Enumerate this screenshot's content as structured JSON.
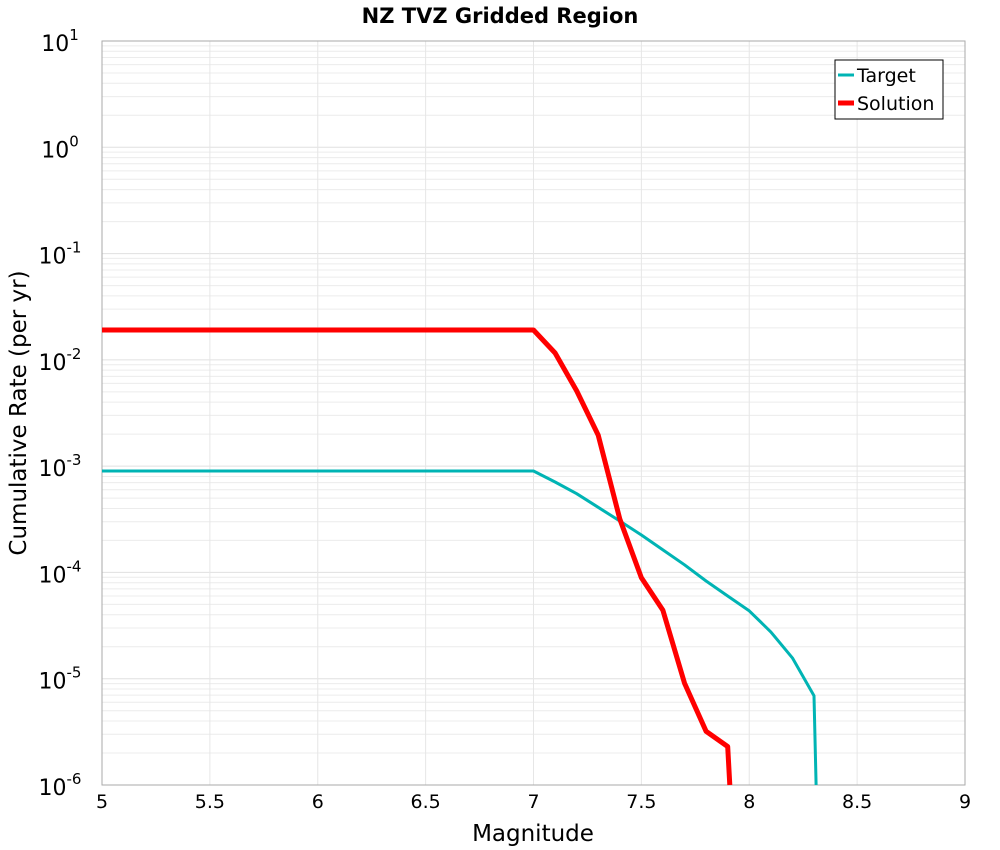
{
  "chart_data": {
    "type": "line",
    "title": "NZ TVZ Gridded Region",
    "xlabel": "Magnitude",
    "ylabel": "Cumulative Rate (per yr)",
    "xlim": [
      5,
      9
    ],
    "ylim": [
      1e-06,
      10
    ],
    "yscale": "log",
    "grid": true,
    "legend_position": "top-right",
    "x_ticks": [
      "5",
      "5.5",
      "6",
      "6.5",
      "7",
      "7.5",
      "8",
      "8.5",
      "9"
    ],
    "y_ticks": [
      {
        "base": "10",
        "exp": "1"
      },
      {
        "base": "10",
        "exp": "0"
      },
      {
        "base": "10",
        "exp": "-1"
      },
      {
        "base": "10",
        "exp": "-2"
      },
      {
        "base": "10",
        "exp": "-3"
      },
      {
        "base": "10",
        "exp": "-4"
      },
      {
        "base": "10",
        "exp": "-5"
      },
      {
        "base": "10",
        "exp": "-6"
      }
    ],
    "series": [
      {
        "name": "Target",
        "color": "#00b4b4",
        "x": [
          5.0,
          7.0,
          7.1,
          7.2,
          7.3,
          7.4,
          7.5,
          7.6,
          7.7,
          7.8,
          7.9,
          8.0,
          8.1,
          8.2,
          8.3,
          8.31
        ],
        "y": [
          0.0009,
          0.0009,
          0.00071,
          0.00055,
          0.00041,
          0.000305,
          0.000225,
          0.000163,
          0.000118,
          8.3e-05,
          6e-05,
          4.35e-05,
          2.76e-05,
          1.57e-05,
          6.9e-06,
          1e-06
        ]
      },
      {
        "name": "Solution",
        "color": "#ff0000",
        "x": [
          5.0,
          7.0,
          7.1,
          7.2,
          7.3,
          7.4,
          7.5,
          7.6,
          7.7,
          7.8,
          7.9,
          7.91
        ],
        "y": [
          0.0191,
          0.0191,
          0.0116,
          0.0051,
          0.00196,
          0.000318,
          8.9e-05,
          4.4e-05,
          9.1e-06,
          3.2e-06,
          2.3e-06,
          1e-06
        ]
      }
    ]
  }
}
